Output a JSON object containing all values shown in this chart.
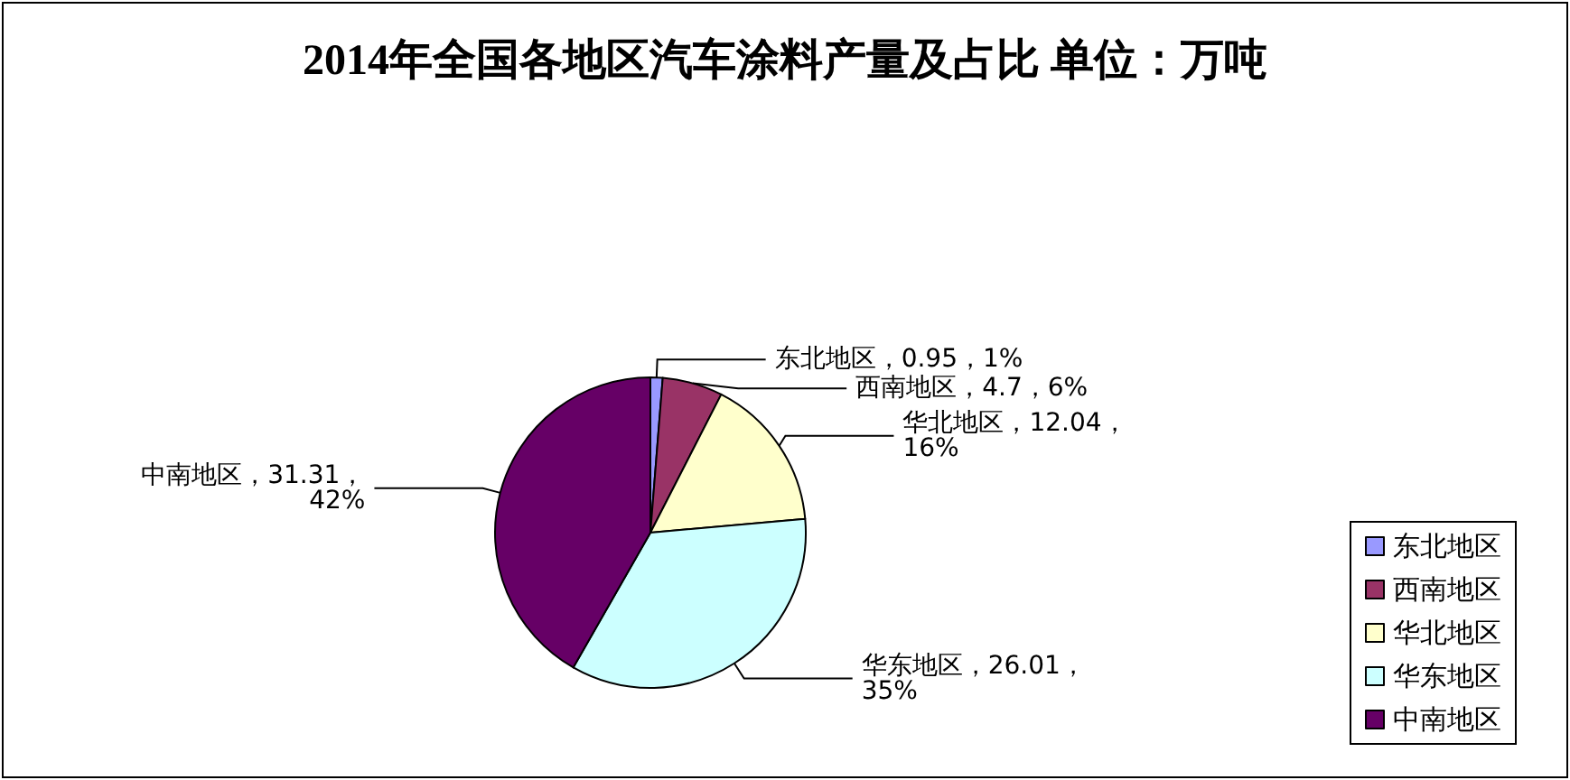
{
  "chart_data": {
    "type": "pie",
    "title": "2014年全国各地区汽车涂料产量及占比 单位：万吨",
    "categories": [
      "东北地区",
      "西南地区",
      "华北地区",
      "华东地区",
      "中南地区"
    ],
    "values": [
      0.95,
      4.7,
      12.04,
      26.01,
      31.31
    ],
    "colors": [
      "#9999ff",
      "#993366",
      "#ffffcc",
      "#ccffff",
      "#660066"
    ],
    "value_labels": [
      "东北地区，0.95，1%",
      "西南地区，4.7，6%",
      "华北地区，12.04，16%",
      "华东地区，26.01，35%",
      "中南地区，31.31，42%"
    ],
    "legend": "bottom right"
  }
}
